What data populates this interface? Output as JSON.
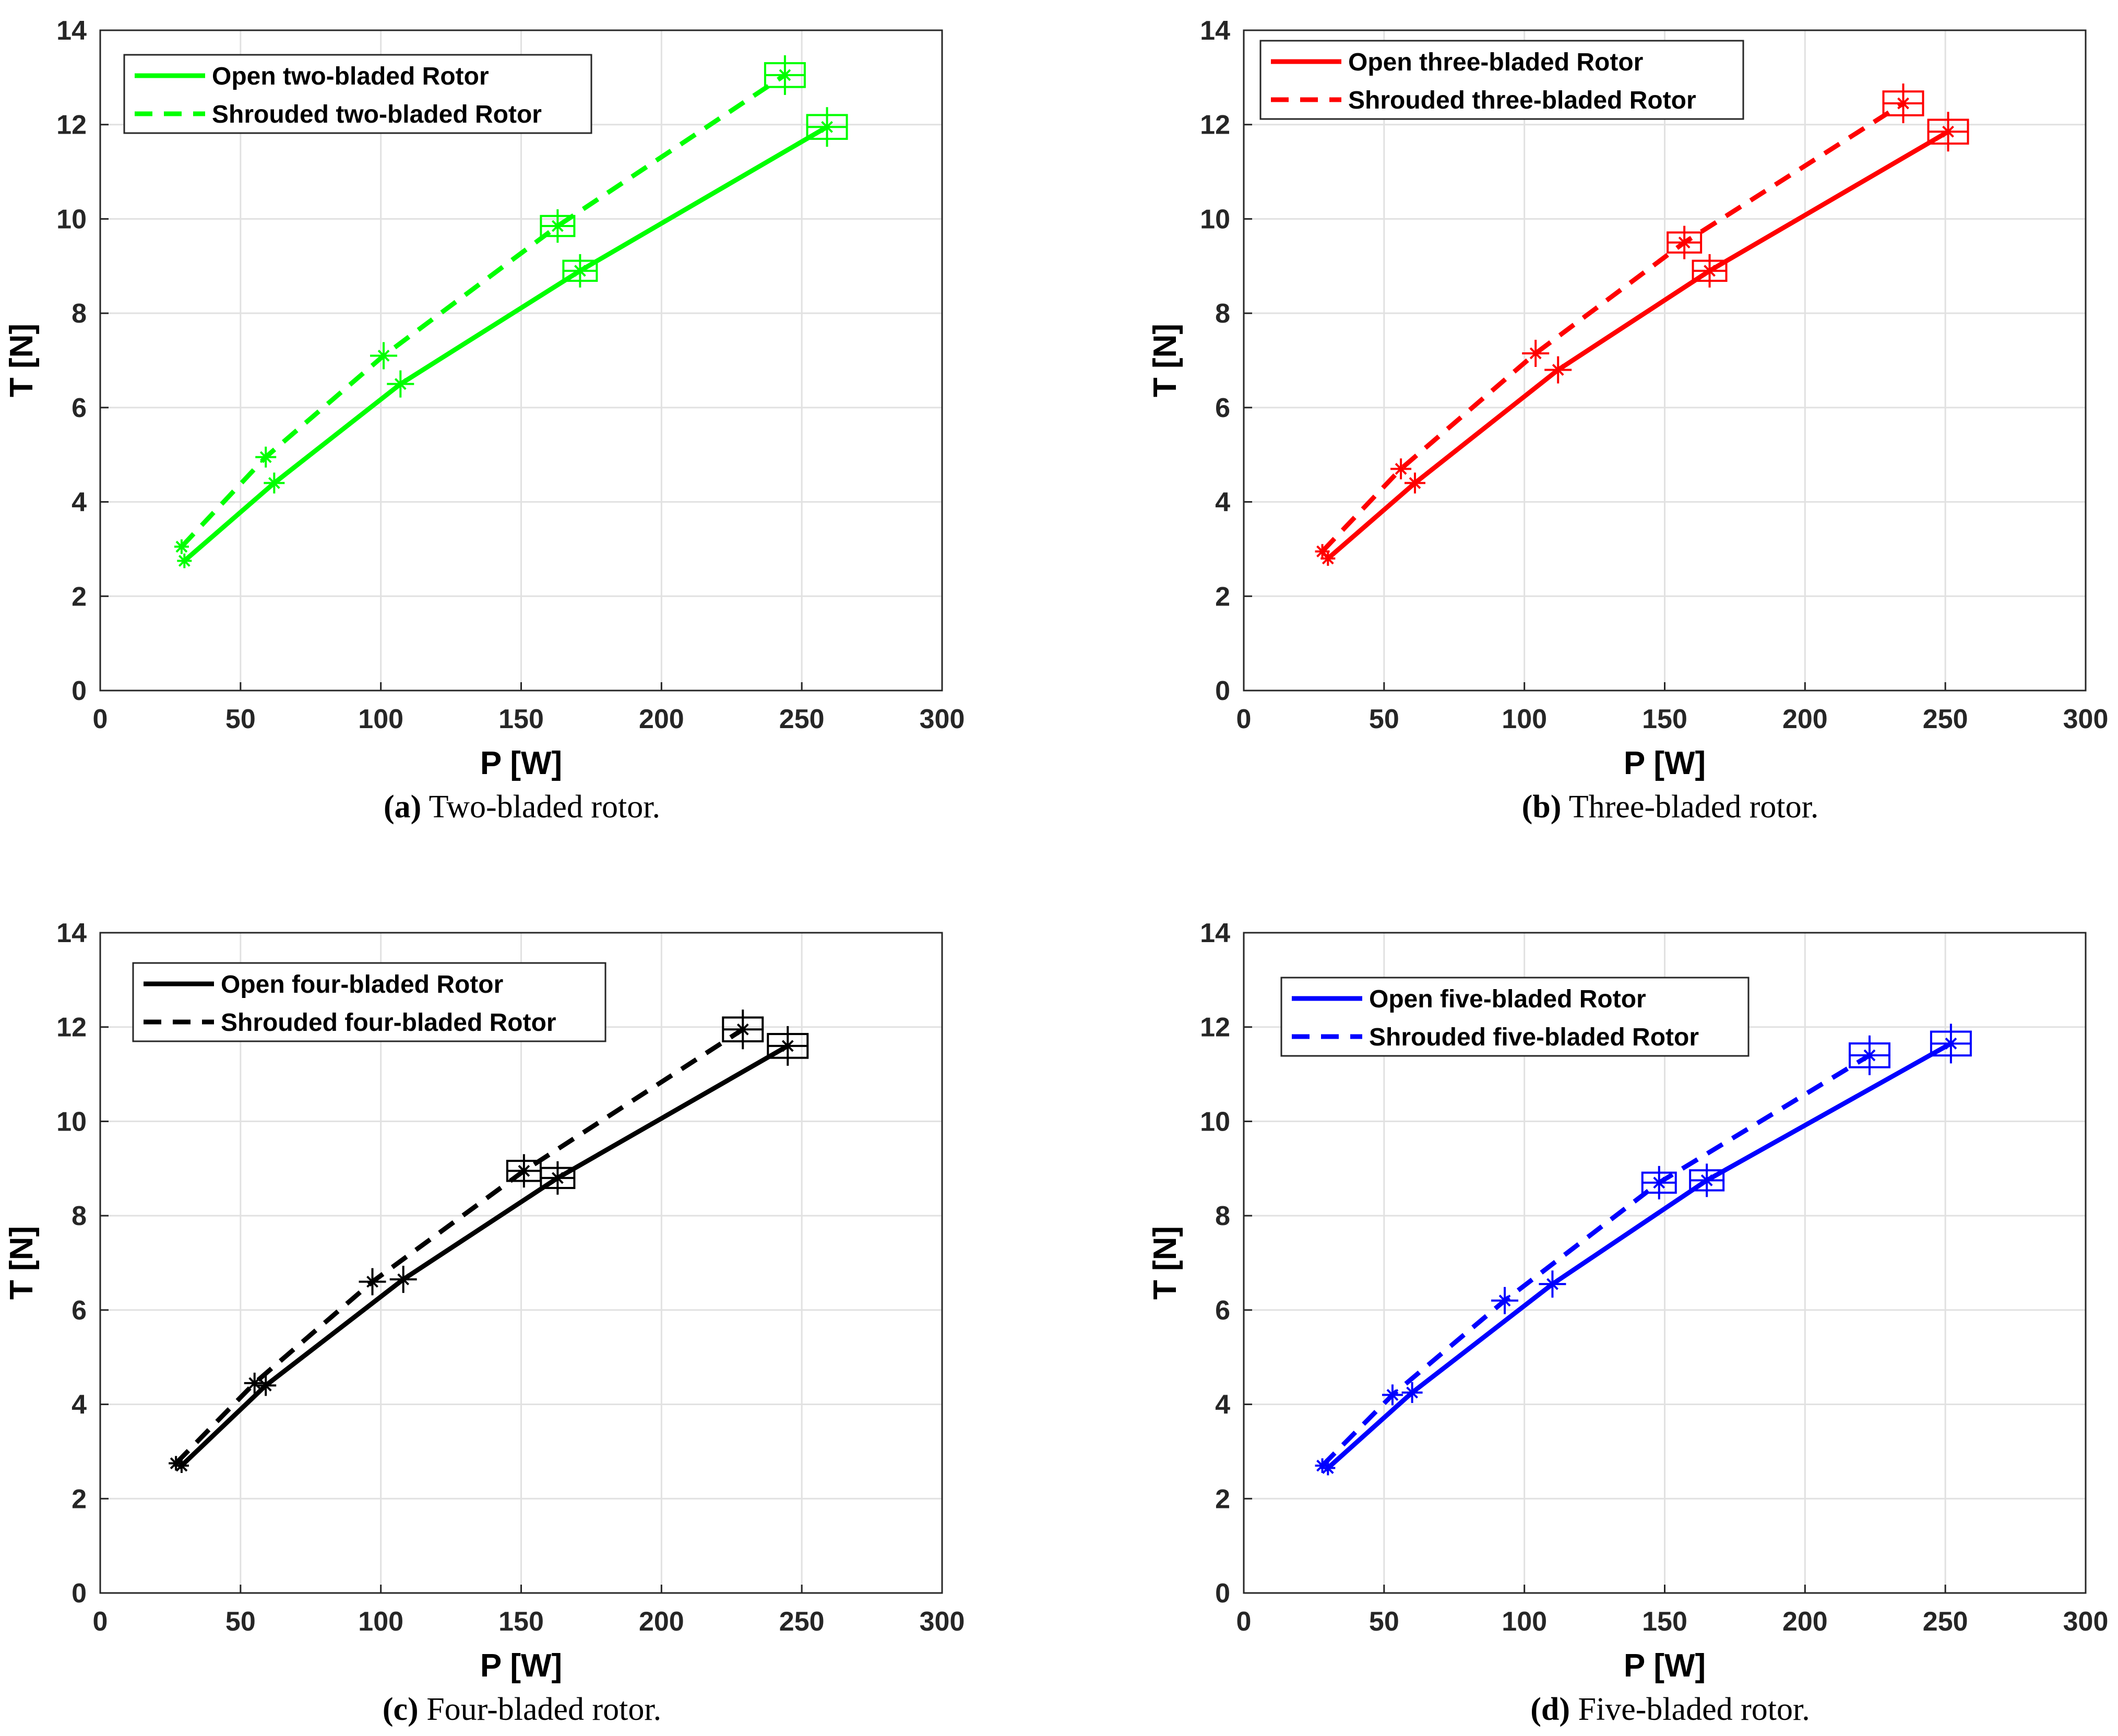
{
  "chart_data": [
    {
      "id": "a",
      "type": "line",
      "xlabel": "P [W]",
      "ylabel": "T [N]",
      "xlim": [
        0,
        300
      ],
      "ylim": [
        0,
        14
      ],
      "xticks": [
        0,
        50,
        100,
        150,
        200,
        250,
        300
      ],
      "yticks": [
        0,
        2,
        4,
        6,
        8,
        10,
        12,
        14
      ],
      "grid": true,
      "legend_position": "top-left",
      "color": "#00ff00",
      "caption_letter": "(a)",
      "caption_text": " Two-bladed rotor.",
      "series": [
        {
          "name": "Open two-bladed Rotor",
          "style": "solid",
          "x": [
            30,
            62,
            107,
            171,
            259
          ],
          "y": [
            2.75,
            4.4,
            6.5,
            8.9,
            11.95
          ]
        },
        {
          "name": "Shrouded two-bladed Rotor",
          "style": "dashed",
          "x": [
            29,
            59,
            101,
            163,
            244
          ],
          "y": [
            3.05,
            4.95,
            7.1,
            9.85,
            13.05
          ]
        }
      ]
    },
    {
      "id": "b",
      "type": "line",
      "xlabel": "P [W]",
      "ylabel": "T [N]",
      "xlim": [
        0,
        300
      ],
      "ylim": [
        0,
        14
      ],
      "xticks": [
        0,
        50,
        100,
        150,
        200,
        250,
        300
      ],
      "yticks": [
        0,
        2,
        4,
        6,
        8,
        10,
        12,
        14
      ],
      "grid": true,
      "legend_position": "top-left",
      "color": "#ff0000",
      "caption_letter": "(b)",
      "caption_text": " Three-bladed rotor.",
      "series": [
        {
          "name": "Open three-bladed Rotor",
          "style": "solid",
          "x": [
            30,
            61,
            112,
            166,
            251
          ],
          "y": [
            2.8,
            4.4,
            6.8,
            8.9,
            11.85
          ]
        },
        {
          "name": "Shrouded three-bladed Rotor",
          "style": "dashed",
          "x": [
            28,
            56,
            104,
            157,
            235
          ],
          "y": [
            2.95,
            4.7,
            7.15,
            9.5,
            12.45
          ]
        }
      ]
    },
    {
      "id": "c",
      "type": "line",
      "xlabel": "P [W]",
      "ylabel": "T [N]",
      "xlim": [
        0,
        300
      ],
      "ylim": [
        0,
        14
      ],
      "xticks": [
        0,
        50,
        100,
        150,
        200,
        250,
        300
      ],
      "yticks": [
        0,
        2,
        4,
        6,
        8,
        10,
        12,
        14
      ],
      "grid": true,
      "legend_position": "top-left",
      "color": "#000000",
      "caption_letter": "(c)",
      "caption_text": " Four-bladed rotor.",
      "series": [
        {
          "name": "Open four-bladed Rotor",
          "style": "solid",
          "x": [
            29,
            59,
            108,
            163,
            245
          ],
          "y": [
            2.7,
            4.4,
            6.65,
            8.8,
            11.6
          ]
        },
        {
          "name": "Shrouded four-bladed Rotor",
          "style": "dashed",
          "x": [
            27,
            55,
            97,
            151,
            229
          ],
          "y": [
            2.75,
            4.45,
            6.6,
            8.95,
            11.95
          ]
        }
      ]
    },
    {
      "id": "d",
      "type": "line",
      "xlabel": "P [W]",
      "ylabel": "T [N]",
      "xlim": [
        0,
        300
      ],
      "ylim": [
        0,
        14
      ],
      "xticks": [
        0,
        50,
        100,
        150,
        200,
        250,
        300
      ],
      "yticks": [
        0,
        2,
        4,
        6,
        8,
        10,
        12,
        14
      ],
      "grid": true,
      "legend_position": "top-left",
      "color": "#0000ff",
      "caption_letter": "(d)",
      "caption_text": " Five-bladed rotor.",
      "series": [
        {
          "name": "Open five-bladed Rotor",
          "style": "solid",
          "x": [
            30,
            60,
            110,
            165,
            252
          ],
          "y": [
            2.65,
            4.25,
            6.55,
            8.75,
            11.65
          ]
        },
        {
          "name": "Shrouded five-bladed Rotor",
          "style": "dashed",
          "x": [
            28,
            53,
            93,
            148,
            223
          ],
          "y": [
            2.7,
            4.2,
            6.2,
            8.7,
            11.4
          ]
        }
      ]
    }
  ]
}
